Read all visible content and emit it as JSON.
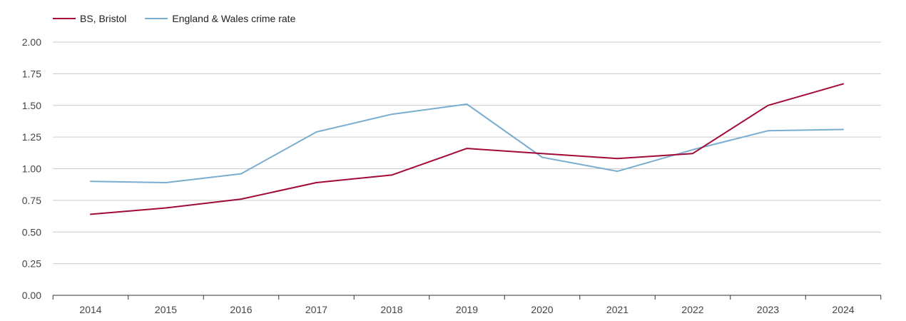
{
  "legend": {
    "series_1": "BS, Bristol",
    "series_2": "England & Wales crime rate"
  },
  "colors": {
    "series_1": "#a10a35",
    "series_2": "#7aadd0",
    "grid": "#cccccc",
    "axis": "#333333"
  },
  "chart_data": {
    "type": "line",
    "title": "",
    "xlabel": "",
    "ylabel": "",
    "x": [
      "2014",
      "2015",
      "2016",
      "2017",
      "2018",
      "2019",
      "2020",
      "2021",
      "2022",
      "2023",
      "2024"
    ],
    "ylim": [
      0,
      2
    ],
    "y_ticks": [
      "0.00",
      "0.25",
      "0.50",
      "0.75",
      "1.00",
      "1.25",
      "1.50",
      "1.75",
      "2.00"
    ],
    "grid": true,
    "legend_position": "top-left",
    "series": [
      {
        "name": "BS, Bristol",
        "values": [
          0.64,
          0.69,
          0.76,
          0.89,
          0.95,
          1.16,
          1.12,
          1.08,
          1.12,
          1.5,
          1.67
        ]
      },
      {
        "name": "England & Wales crime rate",
        "values": [
          0.9,
          0.89,
          0.96,
          1.29,
          1.43,
          1.51,
          1.09,
          0.98,
          1.15,
          1.3,
          1.31
        ]
      }
    ]
  }
}
